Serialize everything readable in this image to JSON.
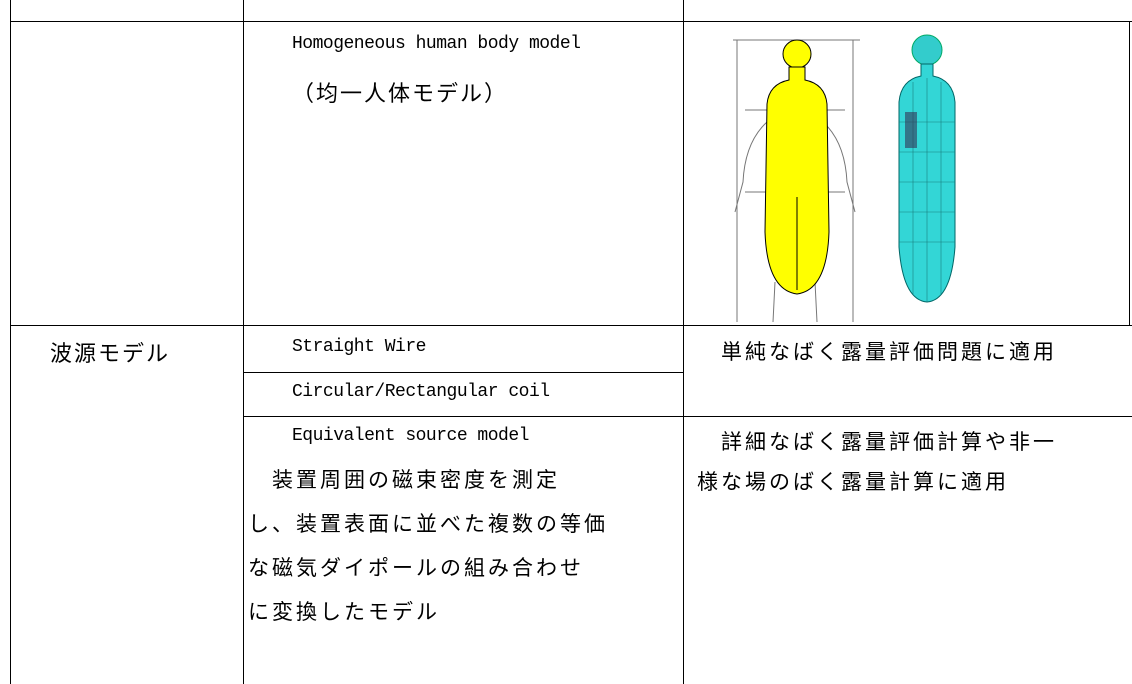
{
  "body_model": {
    "name_en": "Homogeneous human body model",
    "name_ja": "（均一人体モデル）"
  },
  "source_model": {
    "label": "波源モデル",
    "items": [
      {
        "name": "Straight Wire"
      },
      {
        "name": "Circular/Rectangular coil"
      },
      {
        "name": "Equivalent source model",
        "description_lines": [
          "　装置周囲の磁束密度を測定",
          "し、装置表面に並べた複数の等価",
          "な磁気ダイポールの組み合わせ",
          "に変換したモデル"
        ]
      }
    ],
    "notes": [
      {
        "lines": [
          "　単純なばく露量評価問題に適用"
        ]
      },
      {
        "lines": [
          "　詳細なばく露量評価計算や非一",
          "様な場のばく露量計算に適用"
        ]
      }
    ]
  }
}
